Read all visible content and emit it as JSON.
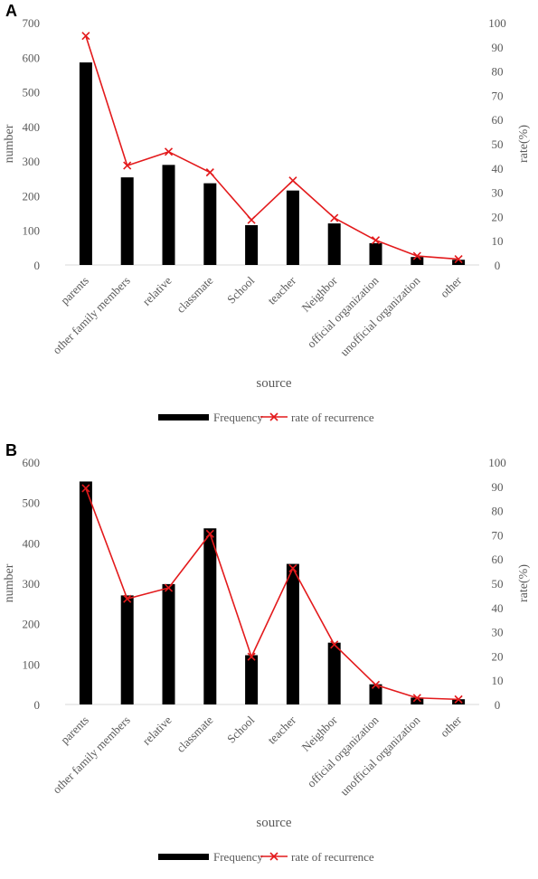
{
  "chart_data": [
    {
      "panel": "A",
      "type": "bar",
      "categories": [
        "parents",
        "other family members",
        "relative",
        "classmate",
        "School",
        "teacher",
        "Neighbor",
        "official organization",
        "unofficial organization",
        "other"
      ],
      "series": [
        {
          "name": "Frequency",
          "type": "bar",
          "axis": "left",
          "color": "#000000",
          "values": [
            585,
            253,
            289,
            236,
            115,
            215,
            120,
            63,
            23,
            15
          ]
        },
        {
          "name": "rate of recurrence",
          "type": "line",
          "axis": "right",
          "color": "#e31a1c",
          "values": [
            94.5,
            41,
            46.7,
            38.2,
            18.6,
            34.8,
            19.4,
            10.2,
            3.7,
            2.4
          ]
        }
      ],
      "xlabel": "source",
      "ylabel": "number",
      "y2label": "rate(%)",
      "ylim": [
        0,
        700
      ],
      "yticks": [
        0,
        100,
        200,
        300,
        400,
        500,
        600,
        700
      ],
      "y2lim": [
        0,
        100
      ],
      "y2ticks": [
        0,
        10,
        20,
        30,
        40,
        50,
        60,
        70,
        80,
        90,
        100
      ],
      "legend_position": "bottom",
      "grid": false
    },
    {
      "panel": "B",
      "type": "bar",
      "categories": [
        "parents",
        "other family members",
        "relative",
        "classmate",
        "School",
        "teacher",
        "Neighbor",
        "official organization",
        "unofficial organization",
        "other"
      ],
      "series": [
        {
          "name": "Frequency",
          "type": "bar",
          "axis": "left",
          "color": "#000000",
          "values": [
            552,
            270,
            298,
            436,
            122,
            348,
            153,
            50,
            17,
            13
          ]
        },
        {
          "name": "rate of recurrence",
          "type": "line",
          "axis": "right",
          "color": "#e31a1c",
          "values": [
            89.2,
            43.6,
            48.1,
            70.4,
            19.7,
            56.2,
            24.7,
            8.1,
            2.7,
            2.1
          ]
        }
      ],
      "xlabel": "source",
      "ylabel": "number",
      "y2label": "rate(%)",
      "ylim": [
        0,
        600
      ],
      "yticks": [
        0,
        100,
        200,
        300,
        400,
        500,
        600
      ],
      "y2lim": [
        0,
        100
      ],
      "y2ticks": [
        0,
        10,
        20,
        30,
        40,
        50,
        60,
        70,
        80,
        90,
        100
      ],
      "legend_position": "bottom",
      "grid": false
    }
  ]
}
